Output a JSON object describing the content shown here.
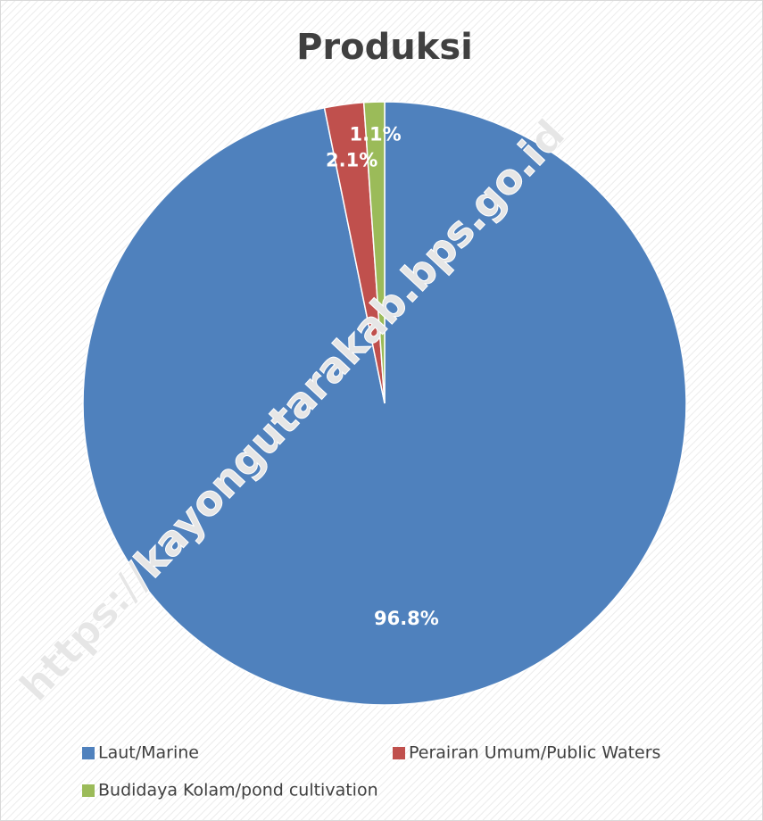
{
  "chart_data": {
    "type": "pie",
    "title": "Produksi",
    "watermark": "https://kayongutarakab.bps.go.id",
    "categories": [
      "Laut/Marine",
      "Perairan Umum/Public Waters",
      "Budidaya Kolam/pond cultivation"
    ],
    "values": [
      96.8,
      2.1,
      1.1
    ],
    "value_labels": [
      "96.8%",
      "2.1%",
      "1.1%"
    ],
    "colors": [
      "#4f81bd",
      "#c0504d",
      "#9bbb59"
    ],
    "legend": "bottom"
  }
}
